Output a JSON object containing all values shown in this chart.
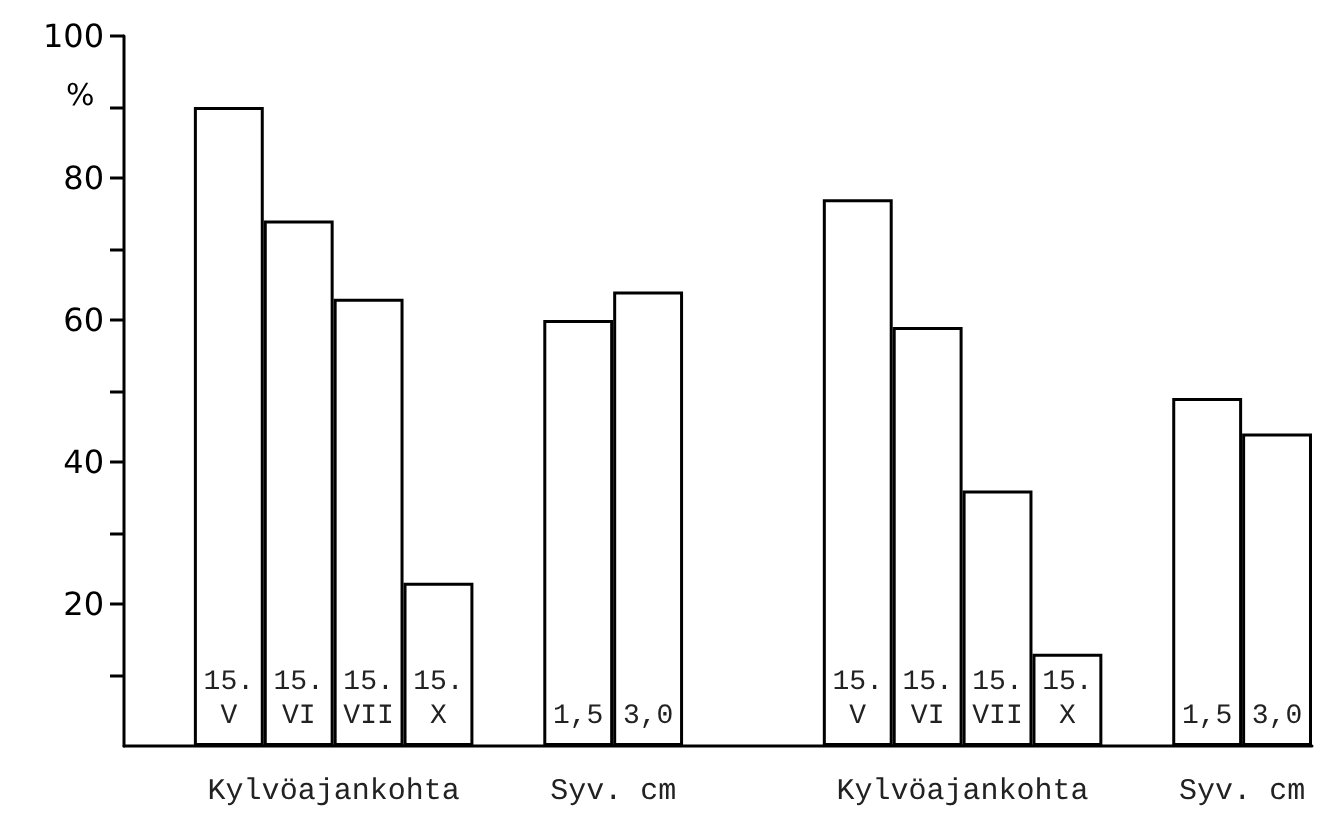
{
  "chart_data": {
    "type": "bar",
    "ylabel": "%",
    "categories": [
      null,
      "15. V",
      "15. VI",
      "15. VII",
      "15. X",
      null,
      "1,5",
      "3,0",
      null,
      null,
      "15. V",
      "15. VI",
      "15. VII",
      "15. X",
      null,
      "1,5",
      "3,0"
    ],
    "values": [
      null,
      90,
      74,
      63,
      23,
      null,
      60,
      64,
      null,
      null,
      77,
      59,
      36,
      13,
      null,
      49,
      44
    ],
    "color": "#ffffff",
    "annotations": [
      "Kylvöajankohta",
      "Syv. cm",
      "Kylvöajankohta",
      "Syv. cm"
    ],
    "ylim": [
      0,
      100
    ],
    "yticks": [
      {
        "value": 10,
        "label": null
      },
      20,
      {
        "value": 30,
        "label": null
      },
      40,
      {
        "value": 50,
        "label": null
      },
      60,
      {
        "value": 70,
        "label": null
      },
      80,
      {
        "value": 90,
        "label": null
      },
      100
    ],
    "grid": false
  }
}
